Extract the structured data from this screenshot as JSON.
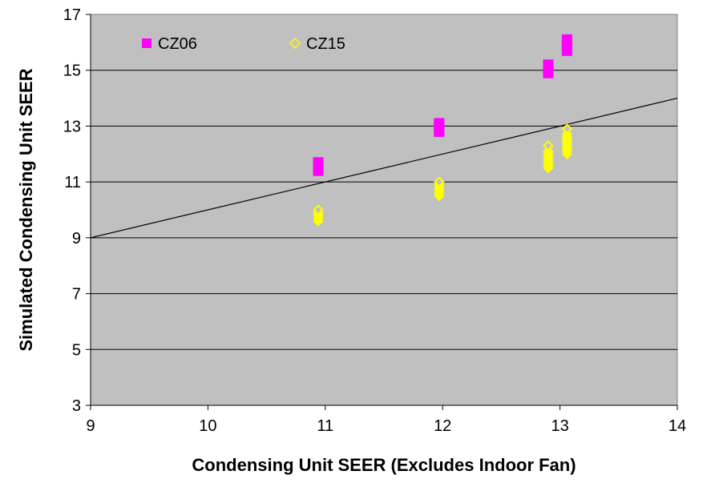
{
  "chart_data": {
    "type": "scatter",
    "title": "",
    "xlabel": "Condensing Unit SEER (Excludes Indoor Fan)",
    "ylabel": "Simulated Condensing Unit SEER",
    "xlim": [
      9,
      14
    ],
    "ylim": [
      3,
      17
    ],
    "xticks": [
      9,
      10,
      11,
      12,
      13,
      14
    ],
    "yticks": [
      3,
      5,
      7,
      9,
      11,
      13,
      15,
      17
    ],
    "xtick_labels": [
      "9",
      "10",
      "11",
      "12",
      "13",
      "14"
    ],
    "ytick_labels": [
      "3",
      "5",
      "7",
      "9",
      "11",
      "13",
      "15",
      "17"
    ],
    "grid": "horizontal",
    "plot_background": "#c0c0c0",
    "legend_position": "top-left",
    "reference_line": {
      "points": [
        [
          9,
          9
        ],
        [
          14,
          14
        ]
      ],
      "color": "#000000"
    },
    "series": [
      {
        "name": "CZ06",
        "marker": "square",
        "color": "#ff00ff",
        "points": [
          [
            10.94,
            11.4
          ],
          [
            10.94,
            11.5
          ],
          [
            10.94,
            11.6
          ],
          [
            10.94,
            11.7
          ],
          [
            11.97,
            12.8
          ],
          [
            11.97,
            12.9
          ],
          [
            11.97,
            13.0
          ],
          [
            11.97,
            13.1
          ],
          [
            12.9,
            14.9
          ],
          [
            12.9,
            15.0
          ],
          [
            12.9,
            15.1
          ],
          [
            12.9,
            15.2
          ],
          [
            13.06,
            15.7
          ],
          [
            13.06,
            15.8
          ],
          [
            13.06,
            15.9
          ],
          [
            13.06,
            16.0
          ],
          [
            13.06,
            16.1
          ]
        ]
      },
      {
        "name": "CZ15",
        "marker": "diamond",
        "color": "#ffff00",
        "points": [
          [
            10.94,
            9.6
          ],
          [
            10.94,
            9.7
          ],
          [
            10.94,
            9.8
          ],
          [
            10.94,
            9.9
          ],
          [
            10.94,
            10.0
          ],
          [
            11.97,
            10.5
          ],
          [
            11.97,
            10.6
          ],
          [
            11.97,
            10.7
          ],
          [
            11.97,
            10.8
          ],
          [
            11.97,
            10.9
          ],
          [
            11.97,
            11.0
          ],
          [
            12.9,
            11.5
          ],
          [
            12.9,
            11.6
          ],
          [
            12.9,
            11.7
          ],
          [
            12.9,
            11.8
          ],
          [
            12.9,
            11.9
          ],
          [
            12.9,
            12.0
          ],
          [
            12.9,
            12.1
          ],
          [
            12.9,
            12.3
          ],
          [
            13.06,
            12.0
          ],
          [
            13.06,
            12.1
          ],
          [
            13.06,
            12.2
          ],
          [
            13.06,
            12.3
          ],
          [
            13.06,
            12.4
          ],
          [
            13.06,
            12.5
          ],
          [
            13.06,
            12.6
          ],
          [
            13.06,
            12.7
          ],
          [
            13.06,
            12.9
          ]
        ]
      }
    ]
  }
}
